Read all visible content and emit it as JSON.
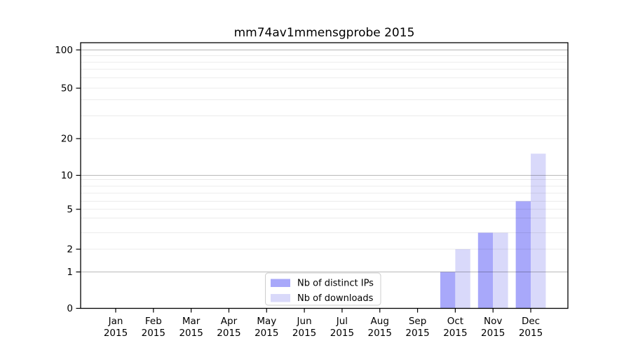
{
  "chart_data": {
    "type": "bar",
    "title": "mm74av1mmensgprobe 2015",
    "categories": [
      "Jan",
      "Feb",
      "Mar",
      "Apr",
      "May",
      "Jun",
      "Jul",
      "Aug",
      "Sep",
      "Oct",
      "Nov",
      "Dec"
    ],
    "category_year": "2015",
    "series": [
      {
        "name": "Nb of distinct IPs",
        "color": "#a8a8fa",
        "values": [
          0,
          0,
          0,
          0,
          0,
          0,
          0,
          0,
          0,
          1,
          3,
          6
        ]
      },
      {
        "name": "Nb of downloads",
        "color": "#d9d9fa",
        "values": [
          0,
          0,
          0,
          0,
          0,
          0,
          0,
          0,
          0,
          2,
          3,
          15
        ]
      }
    ],
    "xlabel": "",
    "ylabel": "",
    "y_scale": "symlog-like",
    "y_ticks": [
      0,
      1,
      2,
      5,
      10,
      20,
      50,
      100
    ],
    "y_major_gridlines": [
      1,
      10,
      100
    ],
    "y_minor_gridlines": [
      2,
      3,
      4,
      5,
      6,
      7,
      8,
      9,
      20,
      30,
      40,
      50,
      60,
      70,
      80,
      90
    ],
    "ylim": [
      0,
      115
    ],
    "grid": true,
    "legend_position": "lower center"
  },
  "colors": {
    "background": "#ffffff",
    "axis_frame": "#000000",
    "major_grid": "rgba(0,0,0,0.27)",
    "minor_grid": "rgba(0,0,0,0.08)",
    "legend_border": "#cccccc",
    "bar_distinct_ips": "#a8a8fa",
    "bar_downloads": "#d9d9fa"
  }
}
